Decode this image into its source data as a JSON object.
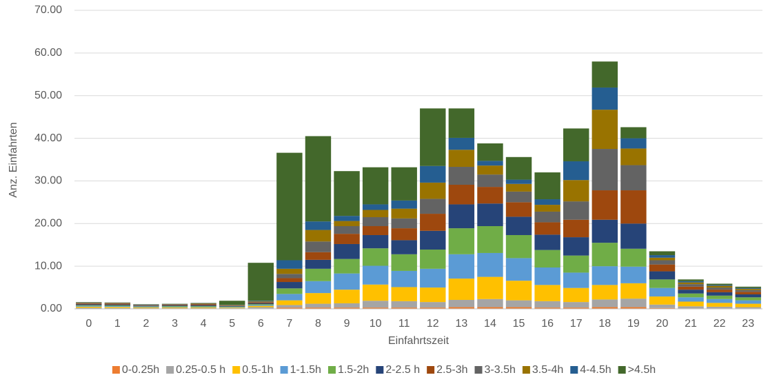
{
  "chart_data": {
    "type": "stacked_bar",
    "x_label": "Einfahrtszeit",
    "y_label": "Anz. Einfahrten",
    "categories": [
      "0",
      "1",
      "2",
      "3",
      "4",
      "5",
      "6",
      "7",
      "8",
      "9",
      "10",
      "11",
      "12",
      "13",
      "14",
      "15",
      "16",
      "17",
      "18",
      "19",
      "20",
      "21",
      "22",
      "23"
    ],
    "ylim": [
      0,
      70
    ],
    "yticks": [
      {
        "value": 0,
        "label": "0.00"
      },
      {
        "value": 10,
        "label": "10.00"
      },
      {
        "value": 20,
        "label": "20.00"
      },
      {
        "value": 30,
        "label": "30.00"
      },
      {
        "value": 40,
        "label": "40.00"
      },
      {
        "value": 50,
        "label": "50.00"
      },
      {
        "value": 60,
        "label": "60.00"
      },
      {
        "value": 70,
        "label": "70.00"
      }
    ],
    "grid": true,
    "legend": "bottom",
    "series": [
      {
        "name": "0-0.25h",
        "color": "#ed7d31",
        "values": [
          0.05,
          0.05,
          0.05,
          0.05,
          0.05,
          0.05,
          0.1,
          0.3,
          0.3,
          0.3,
          0.3,
          0.3,
          0.3,
          0.4,
          0.4,
          0.4,
          0.3,
          0.3,
          0.4,
          0.4,
          0.2,
          0.1,
          0.1,
          0.1
        ]
      },
      {
        "name": "0.25-0.5 h",
        "color": "#a5a5a5",
        "values": [
          0.2,
          0.15,
          0.1,
          0.1,
          0.1,
          0.1,
          0.3,
          0.6,
          0.9,
          1.0,
          1.6,
          1.5,
          1.3,
          1.7,
          1.9,
          1.6,
          1.5,
          1.3,
          1.8,
          2.0,
          0.8,
          0.5,
          0.4,
          0.3
        ]
      },
      {
        "name": "0.5-1h",
        "color": "#ffc000",
        "values": [
          0.25,
          0.25,
          0.2,
          0.2,
          0.2,
          0.15,
          0.3,
          1.1,
          2.5,
          3.2,
          3.8,
          3.3,
          3.4,
          5.0,
          5.2,
          4.6,
          3.8,
          3.3,
          3.4,
          3.6,
          1.9,
          1.1,
          0.9,
          0.8
        ]
      },
      {
        "name": "1-1.5h",
        "color": "#5b9bd5",
        "values": [
          0.2,
          0.2,
          0.15,
          0.15,
          0.15,
          0.15,
          0.2,
          1.5,
          2.8,
          3.8,
          4.4,
          3.8,
          4.4,
          5.7,
          5.6,
          5.3,
          4.1,
          3.6,
          4.4,
          3.9,
          2.0,
          1.0,
          0.9,
          0.8
        ]
      },
      {
        "name": "1.5-2h",
        "color": "#70ad47",
        "values": [
          0.15,
          0.15,
          0.1,
          0.15,
          0.15,
          0.1,
          0.2,
          1.3,
          2.9,
          3.4,
          4.1,
          3.9,
          4.5,
          6.1,
          6.3,
          5.4,
          4.1,
          4.0,
          5.5,
          4.2,
          2.0,
          0.9,
          0.8,
          0.7
        ]
      },
      {
        "name": "2-2.5 h",
        "color": "#264478",
        "values": [
          0.2,
          0.2,
          0.15,
          0.15,
          0.2,
          0.1,
          0.2,
          1.5,
          2.1,
          3.5,
          3.1,
          3.3,
          4.4,
          5.6,
          5.3,
          4.3,
          3.6,
          4.3,
          5.4,
          5.9,
          1.9,
          0.9,
          0.8,
          0.7
        ]
      },
      {
        "name": "2.5-3h",
        "color": "#9e480e",
        "values": [
          0.2,
          0.2,
          0.1,
          0.15,
          0.2,
          0.1,
          0.2,
          0.9,
          1.8,
          2.4,
          2.1,
          2.8,
          4.0,
          4.6,
          3.9,
          3.4,
          2.9,
          4.1,
          6.9,
          7.8,
          1.6,
          0.7,
          0.6,
          0.6
        ]
      },
      {
        "name": "3-3.5h",
        "color": "#636363",
        "values": [
          0.15,
          0.15,
          0.1,
          0.1,
          0.15,
          0.1,
          0.2,
          1.0,
          2.5,
          1.8,
          2.1,
          2.3,
          3.5,
          4.2,
          2.9,
          2.5,
          2.5,
          4.3,
          9.7,
          5.9,
          1.0,
          0.6,
          0.5,
          0.4
        ]
      },
      {
        "name": "3.5-4h",
        "color": "#997300",
        "values": [
          0.1,
          0.1,
          0.05,
          0.05,
          0.1,
          0.05,
          0.1,
          1.2,
          2.7,
          1.2,
          1.7,
          2.3,
          3.8,
          4.0,
          2.1,
          1.8,
          1.6,
          5.0,
          9.2,
          3.9,
          0.6,
          0.4,
          0.4,
          0.3
        ]
      },
      {
        "name": "4-4.5h",
        "color": "#255e91",
        "values": [
          0.05,
          0.05,
          0.05,
          0.05,
          0.05,
          0.05,
          0.1,
          2.0,
          2.0,
          1.2,
          1.3,
          1.9,
          3.9,
          2.8,
          1.1,
          1.0,
          1.3,
          4.4,
          5.2,
          2.4,
          0.6,
          0.3,
          0.2,
          0.2
        ]
      },
      {
        "name": ">4.5h",
        "color": "#43682b",
        "values": [
          0.05,
          0,
          0.05,
          0.05,
          0.05,
          0.95,
          8.9,
          25.2,
          20.0,
          10.5,
          8.7,
          7.8,
          13.5,
          6.9,
          4.1,
          5.3,
          6.3,
          7.7,
          6.1,
          2.6,
          0.9,
          0.4,
          0.3,
          0.3
        ]
      }
    ]
  }
}
